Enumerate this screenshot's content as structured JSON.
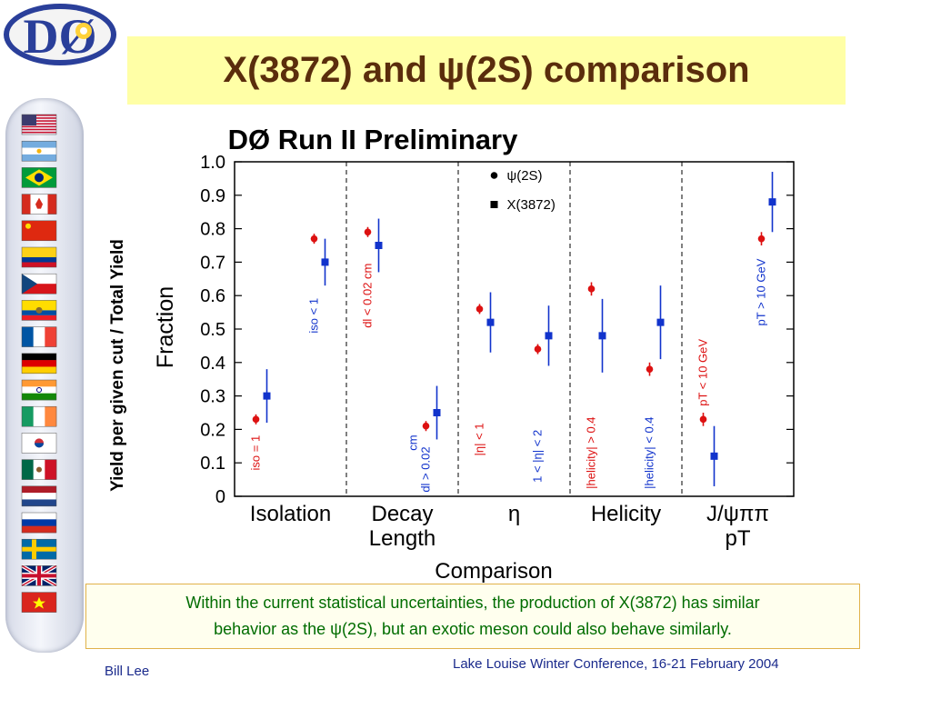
{
  "slide": {
    "title": "X(3872) and ψ(2S) comparison",
    "logo_text": "DØ",
    "side_ylabel": "Yield per given cut / Total Yield",
    "caption_line1": "Within the current statistical uncertainties, the production of X(3872) has similar",
    "caption_line2": "behavior as the ψ(2S), but an exotic meson could also behave similarly.",
    "author": "Bill Lee",
    "conference": "Lake Louise Winter Conference, 16-21 February 2004"
  },
  "flags": [
    "usa",
    "argentina",
    "brazil",
    "canada",
    "china",
    "colombia",
    "czech-republic",
    "ecuador",
    "france",
    "germany",
    "india",
    "ireland",
    "south-korea",
    "mexico",
    "netherlands",
    "russia",
    "sweden",
    "united-kingdom",
    "vietnam"
  ],
  "colors": {
    "psi2s": "#dd1111",
    "x3872": "#1133cc",
    "title": "#5a2d0c",
    "caption": "#006c00",
    "title_bg": "#ffffa6"
  },
  "chart_data": {
    "type": "scatter",
    "title": "DØ Run II Preliminary",
    "xlabel": "Comparison",
    "ylabel": "Fraction",
    "ylim": [
      0,
      1.0
    ],
    "y_ticks": [
      "0",
      "0.1",
      "0.2",
      "0.3",
      "0.4",
      "0.5",
      "0.6",
      "0.7",
      "0.8",
      "0.9",
      "1.0"
    ],
    "grid": false,
    "legend_position": "top-center",
    "categories": [
      {
        "line1": "Isolation",
        "line2": ""
      },
      {
        "line1": "Decay",
        "line2": "Length"
      },
      {
        "line1": "η",
        "line2": ""
      },
      {
        "line1": "Helicity",
        "line2": ""
      },
      {
        "line1": "J/ψππ",
        "line2": "pT"
      }
    ],
    "series": [
      {
        "name": "ψ(2S)",
        "marker": "circle"
      },
      {
        "name": "X(3872)",
        "marker": "square"
      }
    ],
    "points": [
      {
        "category": 0,
        "series": 0,
        "cut": "iso = 1",
        "y": 0.23,
        "err": 0.015
      },
      {
        "category": 0,
        "series": 1,
        "cut": "iso = 1",
        "y": 0.3,
        "err": 0.08
      },
      {
        "category": 0,
        "series": 0,
        "cut": "iso < 1",
        "y": 0.77,
        "err": 0.015
      },
      {
        "category": 0,
        "series": 1,
        "cut": "iso < 1",
        "y": 0.7,
        "err": 0.07
      },
      {
        "category": 1,
        "series": 0,
        "cut": "dl < 0.02 cm",
        "y": 0.79,
        "err": 0.015
      },
      {
        "category": 1,
        "series": 1,
        "cut": "dl < 0.02 cm",
        "y": 0.75,
        "err": 0.08
      },
      {
        "category": 1,
        "series": 0,
        "cut": "dl > 0.02 cm",
        "y": 0.21,
        "err": 0.015
      },
      {
        "category": 1,
        "series": 1,
        "cut": "dl > 0.02 cm",
        "y": 0.25,
        "err": 0.08
      },
      {
        "category": 2,
        "series": 0,
        "cut": "|η| < 1",
        "y": 0.56,
        "err": 0.015
      },
      {
        "category": 2,
        "series": 1,
        "cut": "|η| < 1",
        "y": 0.52,
        "err": 0.09
      },
      {
        "category": 2,
        "series": 0,
        "cut": "1 < |η| < 2",
        "y": 0.44,
        "err": 0.015
      },
      {
        "category": 2,
        "series": 1,
        "cut": "1 < |η| < 2",
        "y": 0.48,
        "err": 0.09
      },
      {
        "category": 3,
        "series": 0,
        "cut": "|helicity| > 0.4",
        "y": 0.62,
        "err": 0.02
      },
      {
        "category": 3,
        "series": 1,
        "cut": "|helicity| > 0.4",
        "y": 0.48,
        "err": 0.11
      },
      {
        "category": 3,
        "series": 0,
        "cut": "|helicity| < 0.4",
        "y": 0.38,
        "err": 0.02
      },
      {
        "category": 3,
        "series": 1,
        "cut": "|helicity| < 0.4",
        "y": 0.52,
        "err": 0.11
      },
      {
        "category": 4,
        "series": 0,
        "cut": "pT < 10 GeV",
        "y": 0.23,
        "err": 0.02
      },
      {
        "category": 4,
        "series": 1,
        "cut": "pT < 10 GeV",
        "y": 0.12,
        "err": 0.09
      },
      {
        "category": 4,
        "series": 0,
        "cut": "pT > 10 GeV",
        "y": 0.77,
        "err": 0.02
      },
      {
        "category": 4,
        "series": 1,
        "cut": "pT > 10 GeV",
        "y": 0.88,
        "err": 0.09
      }
    ],
    "cut_labels": [
      {
        "category": 0,
        "text": "iso = 1",
        "color": "psi2s",
        "y_ref": 0.13
      },
      {
        "category": 0,
        "text": "iso < 1",
        "color": "x3872",
        "y_ref": 0.54
      },
      {
        "category": 1,
        "text": "dl < 0.02 cm",
        "color": "psi2s",
        "y_ref": 0.6
      },
      {
        "category": 1,
        "text": "dl > 0.02",
        "color": "x3872",
        "y_ref": 0.08
      },
      {
        "category": 1,
        "text": "cm",
        "color": "x3872",
        "y_ref": 0.16
      },
      {
        "category": 2,
        "text": "|η| < 1",
        "color": "psi2s",
        "y_ref": 0.17
      },
      {
        "category": 2,
        "text": "1 < |η| < 2",
        "color": "x3872",
        "y_ref": 0.12
      },
      {
        "category": 3,
        "text": "|helicity| > 0.4",
        "color": "psi2s",
        "y_ref": 0.13
      },
      {
        "category": 3,
        "text": "|helicity| < 0.4",
        "color": "x3872",
        "y_ref": 0.13
      },
      {
        "category": 4,
        "text": "pT < 10 GeV",
        "color": "psi2s",
        "y_ref": 0.37
      },
      {
        "category": 4,
        "text": "pT > 10 GeV",
        "color": "x3872",
        "y_ref": 0.61
      }
    ]
  }
}
